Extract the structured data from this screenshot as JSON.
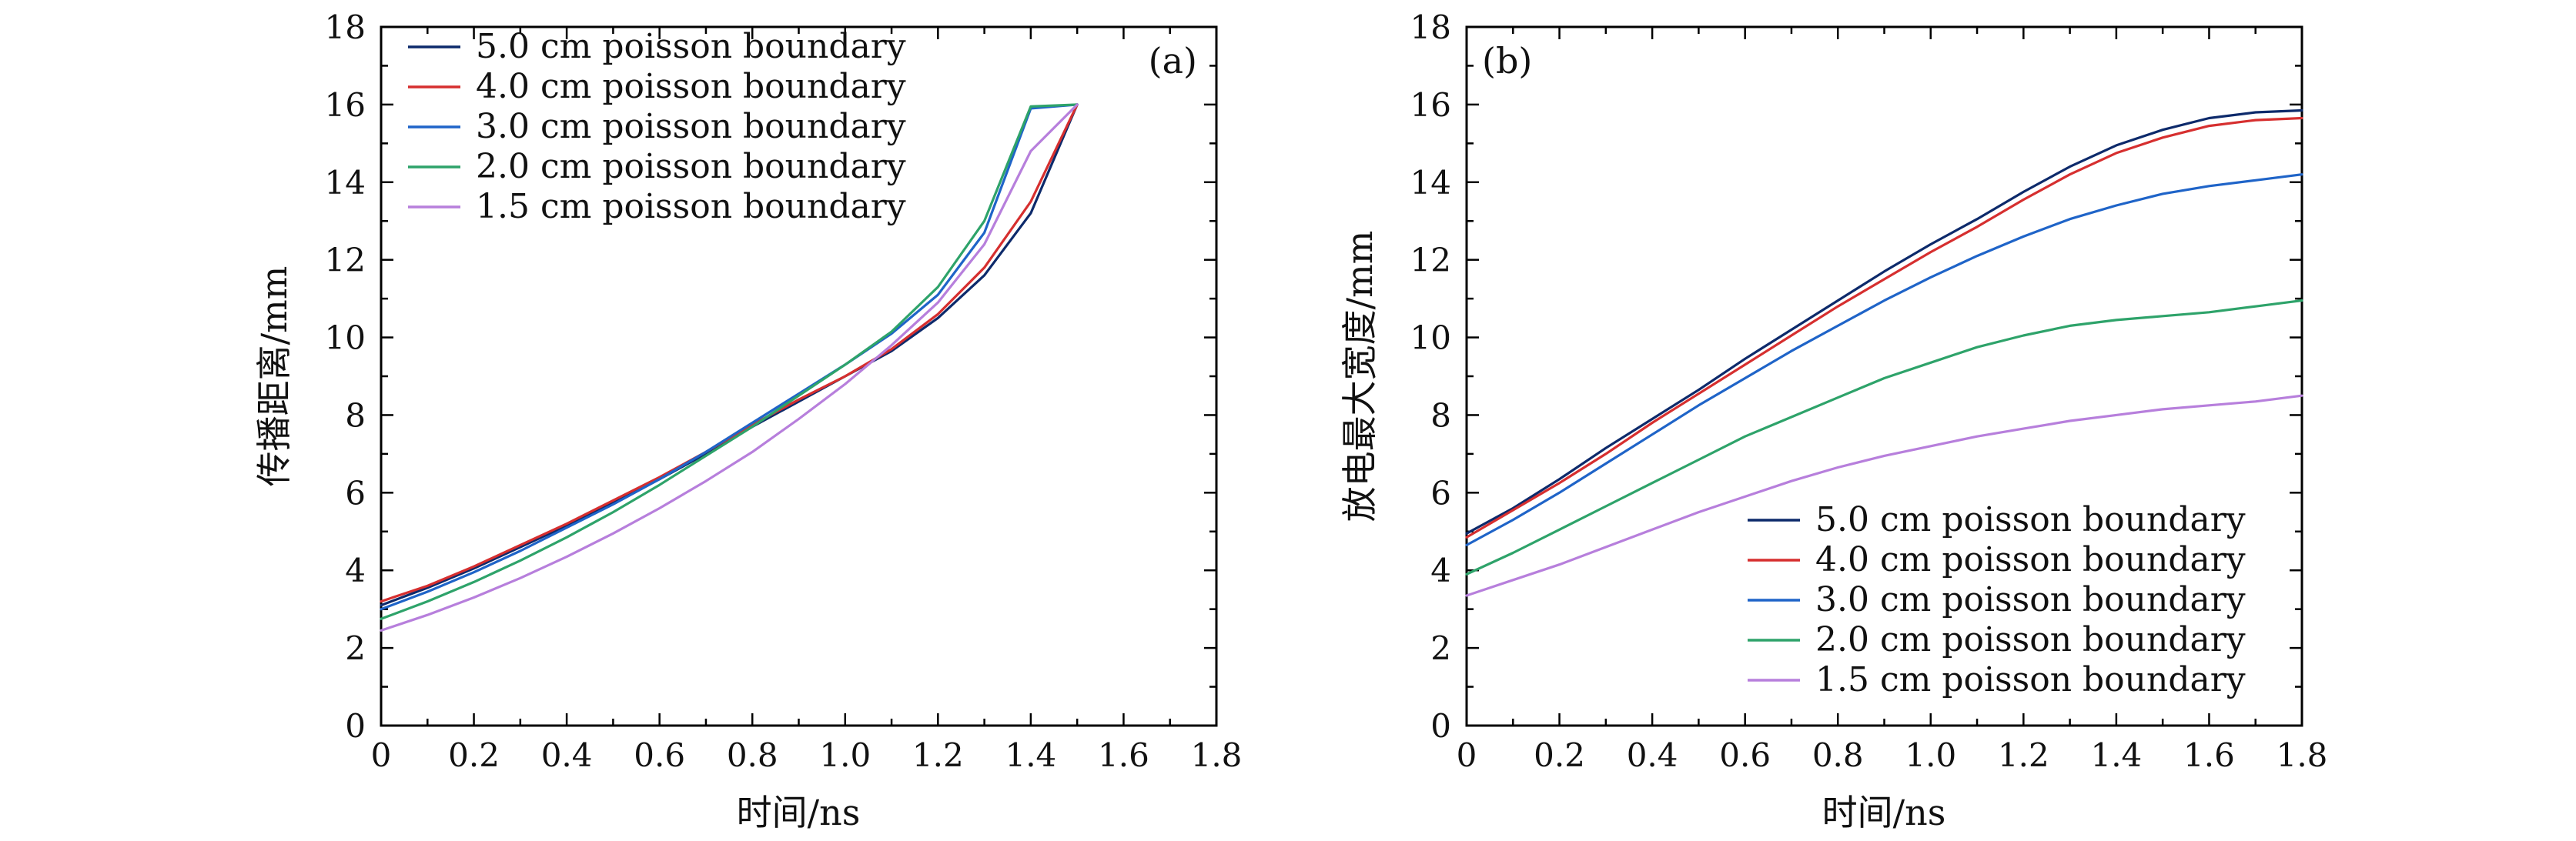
{
  "chart_data": [
    {
      "type": "line",
      "panel_tag": "(a)",
      "xlabel": "时间/ns",
      "ylabel": "传播距离/mm",
      "xlim": [
        0,
        1.8
      ],
      "ylim": [
        0,
        18
      ],
      "xticks": [
        0,
        0.2,
        0.4,
        0.6,
        0.8,
        1.0,
        1.2,
        1.4,
        1.6,
        1.8
      ],
      "xtick_labels": [
        "0",
        "0.2",
        "0.4",
        "0.6",
        "0.8",
        "1.0",
        "1.2",
        "1.4",
        "1.6",
        "1.8"
      ],
      "yticks": [
        0,
        2,
        4,
        6,
        8,
        10,
        12,
        14,
        16,
        18
      ],
      "ytick_labels": [
        "0",
        "2",
        "4",
        "6",
        "8",
        "10",
        "12",
        "14",
        "16",
        "18"
      ],
      "legend_position": "top-left",
      "x": [
        0,
        0.1,
        0.2,
        0.3,
        0.4,
        0.5,
        0.6,
        0.7,
        0.8,
        0.9,
        1.0,
        1.1,
        1.2,
        1.3,
        1.4,
        1.5
      ],
      "series": [
        {
          "name": "5.0 cm poisson boundary",
          "color": "#0d2a6b",
          "values": [
            3.1,
            3.55,
            4.05,
            4.6,
            5.15,
            5.75,
            6.35,
            7.0,
            7.7,
            8.35,
            9.0,
            9.65,
            10.5,
            11.6,
            13.2,
            16.0
          ]
        },
        {
          "name": "4.0 cm poisson boundary",
          "color": "#d62f2f",
          "values": [
            3.2,
            3.6,
            4.1,
            4.65,
            5.2,
            5.8,
            6.4,
            7.05,
            7.75,
            8.4,
            9.0,
            9.7,
            10.6,
            11.8,
            13.5,
            16.0
          ]
        },
        {
          "name": "3.0 cm poisson boundary",
          "color": "#1f64c8",
          "values": [
            3.0,
            3.45,
            3.95,
            4.5,
            5.1,
            5.7,
            6.35,
            7.05,
            7.8,
            8.55,
            9.3,
            10.1,
            11.1,
            12.7,
            15.9,
            16.0
          ]
        },
        {
          "name": "2.0 cm poisson boundary",
          "color": "#2ea36a",
          "values": [
            2.75,
            3.2,
            3.7,
            4.25,
            4.85,
            5.5,
            6.2,
            6.95,
            7.7,
            8.5,
            9.3,
            10.15,
            11.3,
            13.0,
            15.95,
            16.0
          ]
        },
        {
          "name": "1.5 cm poisson boundary",
          "color": "#b77fdc",
          "values": [
            2.45,
            2.85,
            3.3,
            3.8,
            4.35,
            4.95,
            5.6,
            6.3,
            7.05,
            7.9,
            8.8,
            9.8,
            10.9,
            12.4,
            14.8,
            16.0
          ]
        }
      ]
    },
    {
      "type": "line",
      "panel_tag": "(b)",
      "xlabel": "时间/ns",
      "ylabel": "放电最大宽度/mm",
      "xlim": [
        0,
        1.8
      ],
      "ylim": [
        0,
        18
      ],
      "xticks": [
        0,
        0.2,
        0.4,
        0.6,
        0.8,
        1.0,
        1.2,
        1.4,
        1.6,
        1.8
      ],
      "xtick_labels": [
        "0",
        "0.2",
        "0.4",
        "0.6",
        "0.8",
        "1.0",
        "1.2",
        "1.4",
        "1.6",
        "1.8"
      ],
      "yticks": [
        0,
        2,
        4,
        6,
        8,
        10,
        12,
        14,
        16,
        18
      ],
      "ytick_labels": [
        "0",
        "2",
        "4",
        "6",
        "8",
        "10",
        "12",
        "14",
        "16",
        "18"
      ],
      "legend_position": "bottom-right",
      "x": [
        0,
        0.1,
        0.2,
        0.3,
        0.4,
        0.5,
        0.6,
        0.7,
        0.8,
        0.9,
        1.0,
        1.1,
        1.2,
        1.3,
        1.4,
        1.5,
        1.6,
        1.7,
        1.8
      ],
      "series": [
        {
          "name": "5.0 cm poisson boundary",
          "color": "#0d2a6b",
          "values": [
            4.95,
            5.6,
            6.35,
            7.15,
            7.9,
            8.65,
            9.45,
            10.2,
            10.95,
            11.7,
            12.4,
            13.05,
            13.75,
            14.4,
            14.95,
            15.35,
            15.65,
            15.8,
            15.85
          ]
        },
        {
          "name": "4.0 cm poisson boundary",
          "color": "#d62f2f",
          "values": [
            4.85,
            5.55,
            6.25,
            7.0,
            7.8,
            8.55,
            9.3,
            10.05,
            10.8,
            11.5,
            12.2,
            12.85,
            13.55,
            14.2,
            14.75,
            15.15,
            15.45,
            15.6,
            15.65
          ]
        },
        {
          "name": "3.0 cm poisson boundary",
          "color": "#1f64c8",
          "values": [
            4.65,
            5.3,
            6.0,
            6.75,
            7.5,
            8.25,
            8.95,
            9.65,
            10.3,
            10.95,
            11.55,
            12.1,
            12.6,
            13.05,
            13.4,
            13.7,
            13.9,
            14.05,
            14.2
          ]
        },
        {
          "name": "2.0 cm poisson boundary",
          "color": "#2ea36a",
          "values": [
            3.9,
            4.45,
            5.05,
            5.65,
            6.25,
            6.85,
            7.45,
            7.95,
            8.45,
            8.95,
            9.35,
            9.75,
            10.05,
            10.3,
            10.45,
            10.55,
            10.65,
            10.8,
            10.95
          ]
        },
        {
          "name": "1.5 cm poisson boundary",
          "color": "#b77fdc",
          "values": [
            3.35,
            3.75,
            4.15,
            4.6,
            5.05,
            5.5,
            5.9,
            6.3,
            6.65,
            6.95,
            7.2,
            7.45,
            7.65,
            7.85,
            8.0,
            8.15,
            8.25,
            8.35,
            8.5
          ]
        }
      ]
    }
  ]
}
